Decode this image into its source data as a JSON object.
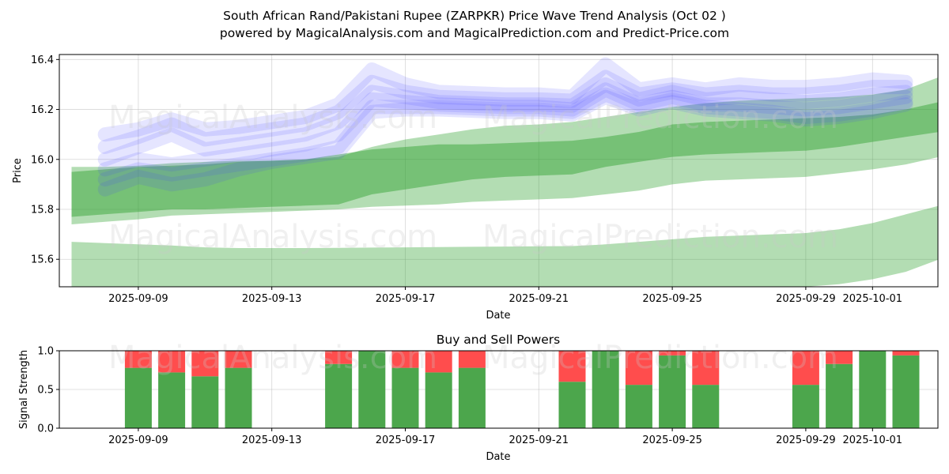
{
  "chart_data": {
    "type": "area",
    "title": "South African Rand/Pakistani Rupee (ZARPKR) Price Wave Trend Analysis (Oct 02 )",
    "subtitle": "powered by MagicalAnalysis.com and MagicalPrediction.com and Predict-Price.com",
    "watermarks": [
      "MagicalAnalysis.com",
      "MagicalPrediction.com"
    ],
    "top_panel": {
      "xlabel": "Date",
      "ylabel": "Price",
      "ylim": [
        15.49,
        16.42
      ],
      "yticks": [
        15.6,
        15.8,
        16.0,
        16.2,
        16.4
      ],
      "xticks": [
        "2025-09-09",
        "2025-09-13",
        "2025-09-17",
        "2025-09-21",
        "2025-09-25",
        "2025-09-29",
        "2025-10-01"
      ],
      "dates": [
        "2025-09-07",
        "2025-09-08",
        "2025-09-09",
        "2025-09-10",
        "2025-09-11",
        "2025-09-12",
        "2025-09-13",
        "2025-09-14",
        "2025-09-15",
        "2025-09-16",
        "2025-09-17",
        "2025-09-18",
        "2025-09-19",
        "2025-09-20",
        "2025-09-21",
        "2025-09-22",
        "2025-09-23",
        "2025-09-24",
        "2025-09-25",
        "2025-09-26",
        "2025-09-27",
        "2025-09-28",
        "2025-09-29",
        "2025-09-30",
        "2025-10-01",
        "2025-10-02",
        "2025-10-03"
      ],
      "green_bands": [
        {
          "name": "long-term band",
          "upper": [
            15.67,
            15.665,
            15.66,
            15.655,
            15.648,
            15.645,
            15.645,
            15.645,
            15.646,
            15.647,
            15.648,
            15.649,
            15.65,
            15.651,
            15.652,
            15.653,
            15.66,
            15.67,
            15.68,
            15.69,
            15.695,
            15.7,
            15.705,
            15.72,
            15.745,
            15.78,
            15.815
          ],
          "lower": [
            15.49,
            15.49,
            15.49,
            15.49,
            15.49,
            15.49,
            15.49,
            15.49,
            15.49,
            15.49,
            15.49,
            15.49,
            15.49,
            15.49,
            15.49,
            15.49,
            15.49,
            15.49,
            15.49,
            15.49,
            15.49,
            15.49,
            15.49,
            15.5,
            15.52,
            15.55,
            15.6
          ]
        },
        {
          "name": "mid-term band",
          "upper": [
            15.97,
            15.97,
            15.975,
            15.985,
            15.99,
            15.995,
            15.995,
            16.0,
            16.01,
            16.05,
            16.08,
            16.1,
            16.12,
            16.135,
            16.14,
            16.15,
            16.17,
            16.19,
            16.21,
            16.225,
            16.235,
            16.24,
            16.245,
            16.25,
            16.26,
            16.28,
            16.33
          ],
          "lower": [
            15.74,
            15.75,
            15.76,
            15.775,
            15.78,
            15.785,
            15.79,
            15.795,
            15.8,
            15.81,
            15.815,
            15.82,
            15.83,
            15.835,
            15.84,
            15.845,
            15.86,
            15.875,
            15.9,
            15.915,
            15.92,
            15.925,
            15.93,
            15.945,
            15.96,
            15.98,
            16.01
          ]
        },
        {
          "name": "short-term band",
          "upper": [
            15.95,
            15.96,
            15.97,
            15.975,
            15.98,
            15.99,
            15.995,
            16.0,
            16.02,
            16.04,
            16.05,
            16.06,
            16.06,
            16.065,
            16.07,
            16.075,
            16.09,
            16.11,
            16.14,
            16.15,
            16.155,
            16.16,
            16.165,
            16.17,
            16.18,
            16.2,
            16.23
          ],
          "lower": [
            15.77,
            15.78,
            15.79,
            15.8,
            15.8,
            15.805,
            15.81,
            15.815,
            15.82,
            15.86,
            15.88,
            15.9,
            15.92,
            15.93,
            15.935,
            15.94,
            15.97,
            15.99,
            16.01,
            16.02,
            16.025,
            16.03,
            16.035,
            16.05,
            16.07,
            16.09,
            16.11
          ]
        }
      ],
      "wave_dates": [
        "2025-09-08",
        "2025-09-09",
        "2025-09-10",
        "2025-09-11",
        "2025-09-12",
        "2025-09-13",
        "2025-09-14",
        "2025-09-15",
        "2025-09-16",
        "2025-09-17",
        "2025-09-18",
        "2025-09-19",
        "2025-09-20",
        "2025-09-21",
        "2025-09-22",
        "2025-09-23",
        "2025-09-24",
        "2025-09-25",
        "2025-09-26",
        "2025-09-27",
        "2025-09-28",
        "2025-09-29",
        "2025-09-30",
        "2025-10-01",
        "2025-10-02"
      ],
      "blue_waves": [
        [
          16.1,
          16.12,
          16.16,
          16.12,
          16.13,
          16.15,
          16.17,
          16.22,
          16.36,
          16.3,
          16.27,
          16.265,
          16.26,
          16.26,
          16.25,
          16.38,
          16.28,
          16.3,
          16.28,
          16.3,
          16.29,
          16.29,
          16.3,
          16.32,
          16.31
        ],
        [
          16.05,
          16.09,
          16.14,
          16.08,
          16.1,
          16.12,
          16.14,
          16.19,
          16.31,
          16.27,
          16.25,
          16.245,
          16.24,
          16.24,
          16.235,
          16.33,
          16.26,
          16.28,
          16.26,
          16.27,
          16.26,
          16.26,
          16.27,
          16.29,
          16.29
        ],
        [
          16.0,
          16.05,
          16.1,
          16.04,
          16.06,
          16.08,
          16.1,
          16.15,
          16.27,
          16.25,
          16.23,
          16.225,
          16.22,
          16.22,
          16.215,
          16.3,
          16.24,
          16.27,
          16.24,
          16.25,
          16.24,
          16.23,
          16.24,
          16.26,
          16.27
        ],
        [
          15.96,
          16.0,
          15.98,
          16.0,
          16.02,
          16.04,
          16.06,
          16.1,
          16.24,
          16.23,
          16.22,
          16.215,
          16.21,
          16.21,
          16.2,
          16.28,
          16.22,
          16.25,
          16.22,
          16.22,
          16.21,
          16.2,
          16.21,
          16.23,
          16.25
        ],
        [
          15.92,
          15.96,
          15.94,
          15.96,
          15.98,
          16.0,
          16.02,
          16.05,
          16.21,
          16.21,
          16.21,
          16.205,
          16.2,
          16.2,
          16.19,
          16.26,
          16.21,
          16.24,
          16.21,
          16.2,
          16.19,
          16.17,
          16.18,
          16.2,
          16.23
        ],
        [
          15.88,
          15.93,
          15.9,
          15.92,
          15.96,
          15.99,
          16.01,
          16.03,
          16.19,
          16.2,
          16.2,
          16.195,
          16.19,
          16.19,
          16.18,
          16.25,
          16.2,
          16.23,
          16.2,
          16.19,
          16.18,
          16.16,
          16.17,
          16.19,
          16.22
        ]
      ]
    },
    "bottom_panel": {
      "title": "Buy and Sell Powers",
      "xlabel": "Date",
      "ylabel": "Signal Strength",
      "ylim": [
        0,
        1.0
      ],
      "yticks": [
        "0.0",
        "0.5",
        "1.0"
      ],
      "xticks": [
        "2025-09-09",
        "2025-09-13",
        "2025-09-17",
        "2025-09-21",
        "2025-09-25",
        "2025-09-29",
        "2025-10-01"
      ],
      "dates": [
        "2025-09-09",
        "2025-09-10",
        "2025-09-11",
        "2025-09-12",
        "2025-09-15",
        "2025-09-16",
        "2025-09-17",
        "2025-09-18",
        "2025-09-19",
        "2025-09-22",
        "2025-09-23",
        "2025-09-24",
        "2025-09-25",
        "2025-09-26",
        "2025-09-29",
        "2025-09-30",
        "2025-10-01",
        "2025-10-02"
      ],
      "buy": [
        0.78,
        0.72,
        0.67,
        0.78,
        0.83,
        1.0,
        0.78,
        0.72,
        0.78,
        0.6,
        1.0,
        0.56,
        0.94,
        0.56,
        0.56,
        0.83,
        1.0,
        0.94
      ],
      "sell": [
        0.22,
        0.28,
        0.33,
        0.22,
        0.17,
        0.0,
        0.22,
        0.28,
        0.22,
        0.4,
        0.0,
        0.44,
        0.06,
        0.44,
        0.44,
        0.17,
        0.0,
        0.06
      ],
      "buy_color": "#4ca64c",
      "sell_color": "#ff4d4d"
    },
    "colors": {
      "green_band": "#2ca02c",
      "blue_wave": "#4444ff"
    }
  }
}
